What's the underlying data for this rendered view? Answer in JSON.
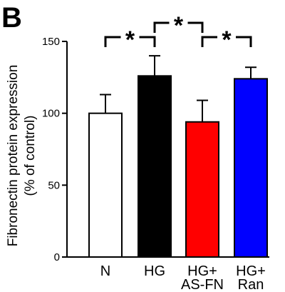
{
  "panel_label": "B",
  "chart_data": {
    "type": "bar",
    "ylabel_line1": "Fibronectin protein expression",
    "ylabel_line2": "(% of control)",
    "ylim": [
      0,
      150
    ],
    "yticks": [
      0,
      50,
      100,
      150
    ],
    "ytick_labels": [
      "0",
      "50",
      "100",
      "150"
    ],
    "categories": [
      {
        "line1": "N",
        "line2": ""
      },
      {
        "line1": "HG",
        "line2": ""
      },
      {
        "line1": "HG+",
        "line2": "AS-FN"
      },
      {
        "line1": "HG+",
        "line2": "Ran"
      }
    ],
    "values": [
      100,
      126,
      94,
      124
    ],
    "errors": [
      13,
      14,
      15,
      8
    ],
    "colors": [
      "#ffffff",
      "#000000",
      "#ff0000",
      "#0000ff"
    ],
    "significance": [
      {
        "from": 0,
        "to": 1,
        "label": "*"
      },
      {
        "from": 1,
        "to": 2,
        "label": "*"
      },
      {
        "from": 2,
        "to": 3,
        "label": "*"
      }
    ]
  }
}
